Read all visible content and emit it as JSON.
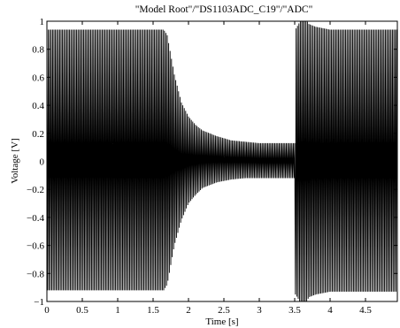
{
  "chart_data": {
    "type": "line",
    "title": "\"Model Root\"/\"DS1103ADC_C19\"/\"ADC\"",
    "xlabel": "Time [s]",
    "ylabel": "Voltage [V]",
    "xlim": [
      0,
      4.95
    ],
    "ylim": [
      -1,
      1
    ],
    "x_ticks": [
      0,
      0.5,
      1,
      1.5,
      2,
      2.5,
      3,
      3.5,
      4,
      4.5
    ],
    "x_tick_labels": [
      "0",
      "0.5",
      "1",
      "1.5",
      "2",
      "2.5",
      "3",
      "3.5",
      "4",
      "4.5"
    ],
    "y_ticks": [
      -1,
      -0.8,
      -0.6,
      -0.4,
      -0.2,
      0,
      0.2,
      0.4,
      0.6,
      0.8,
      1
    ],
    "y_tick_labels": [
      "−1",
      "−0.8",
      "−0.6",
      "−0.4",
      "−0.2",
      "0",
      "0.2",
      "0.4",
      "0.6",
      "0.8",
      "1"
    ],
    "grid": false,
    "legend": "none",
    "line_color": "#000000",
    "series": [
      {
        "envelope_upper": [
          [
            0,
            0.94
          ],
          [
            1.65,
            0.94
          ],
          [
            1.7,
            0.9
          ],
          [
            1.8,
            0.62
          ],
          [
            1.9,
            0.42
          ],
          [
            2.0,
            0.32
          ],
          [
            2.1,
            0.26
          ],
          [
            2.2,
            0.22
          ],
          [
            2.4,
            0.18
          ],
          [
            2.6,
            0.15
          ],
          [
            2.8,
            0.14
          ],
          [
            3.0,
            0.13
          ],
          [
            3.5,
            0.13
          ],
          [
            3.51,
            0.94
          ],
          [
            3.6,
            1.02
          ],
          [
            3.65,
            1.02
          ],
          [
            3.7,
            0.98
          ],
          [
            3.8,
            0.96
          ],
          [
            4.0,
            0.94
          ],
          [
            4.95,
            0.94
          ]
        ],
        "envelope_lower": [
          [
            0,
            -0.92
          ],
          [
            1.65,
            -0.92
          ],
          [
            1.7,
            -0.88
          ],
          [
            1.8,
            -0.6
          ],
          [
            1.9,
            -0.42
          ],
          [
            2.0,
            -0.3
          ],
          [
            2.1,
            -0.24
          ],
          [
            2.2,
            -0.19
          ],
          [
            2.4,
            -0.15
          ],
          [
            2.6,
            -0.13
          ],
          [
            2.8,
            -0.12
          ],
          [
            3.0,
            -0.12
          ],
          [
            3.5,
            -0.12
          ],
          [
            3.51,
            -0.95
          ],
          [
            3.6,
            -1.02
          ],
          [
            3.65,
            -1.02
          ],
          [
            3.7,
            -0.97
          ],
          [
            3.8,
            -0.95
          ],
          [
            4.0,
            -0.93
          ],
          [
            4.95,
            -0.93
          ]
        ],
        "oscillation_period_s": 0.02
      }
    ]
  }
}
